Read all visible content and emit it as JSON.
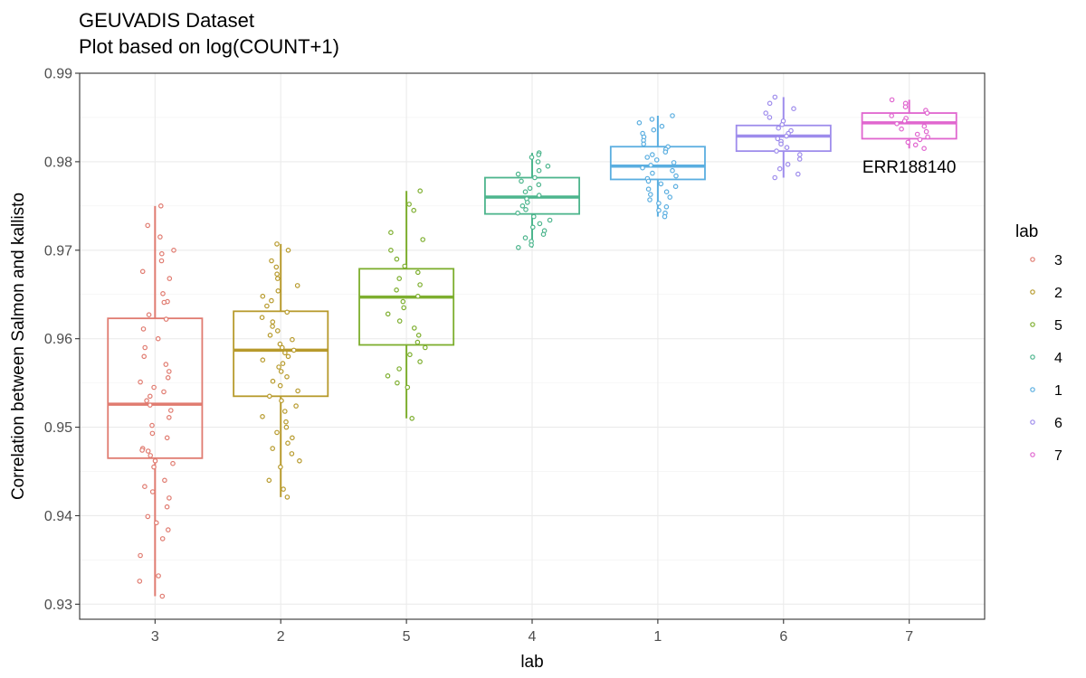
{
  "chart_data": {
    "type": "box",
    "title_lines": [
      "GEUVADIS Dataset",
      "Plot based on log(COUNT+1)"
    ],
    "xlabel": "lab",
    "ylabel": "Correlation between Salmon and kallisto",
    "categories": [
      "3",
      "2",
      "5",
      "4",
      "1",
      "6",
      "7"
    ],
    "ylim": [
      0.9283,
      0.99
    ],
    "yticks": [
      0.93,
      0.94,
      0.95,
      0.96,
      0.97,
      0.98,
      0.99
    ],
    "ytick_labels": [
      "0.93",
      "0.94",
      "0.95",
      "0.96",
      "0.97",
      "0.98",
      "0.99"
    ],
    "grid": true,
    "legend": {
      "title": "lab",
      "placement": "right",
      "entries": [
        "3",
        "2",
        "5",
        "4",
        "1",
        "6",
        "7"
      ]
    },
    "annotation": {
      "text": "ERR188140",
      "category": "7",
      "y": 0.9795
    },
    "boxes": [
      {
        "lab": "3",
        "color": "#E07B70",
        "whisker_low": 0.9309,
        "q1": 0.9465,
        "median": 0.9526,
        "q3": 0.9623,
        "whisker_high": 0.975
      },
      {
        "lab": "2",
        "color": "#B79A2C",
        "whisker_low": 0.9421,
        "q1": 0.9535,
        "median": 0.9587,
        "q3": 0.9631,
        "whisker_high": 0.9707
      },
      {
        "lab": "5",
        "color": "#7DAE2E",
        "whisker_low": 0.951,
        "q1": 0.9593,
        "median": 0.9647,
        "q3": 0.9679,
        "whisker_high": 0.9767
      },
      {
        "lab": "4",
        "color": "#4DB58D",
        "whisker_low": 0.9703,
        "q1": 0.9741,
        "median": 0.976,
        "q3": 0.9782,
        "whisker_high": 0.981
      },
      {
        "lab": "1",
        "color": "#5AAEE0",
        "whisker_low": 0.9738,
        "q1": 0.978,
        "median": 0.9795,
        "q3": 0.9817,
        "whisker_high": 0.9852
      },
      {
        "lab": "6",
        "color": "#9E8CEC",
        "whisker_low": 0.9782,
        "q1": 0.9812,
        "median": 0.9829,
        "q3": 0.9841,
        "whisker_high": 0.9873
      },
      {
        "lab": "7",
        "color": "#E066CF",
        "whisker_low": 0.9815,
        "q1": 0.9826,
        "median": 0.9844,
        "q3": 0.9855,
        "whisker_high": 0.987
      }
    ],
    "points": [
      {
        "lab": "3",
        "values": [
          0.975,
          0.9728,
          0.9715,
          0.97,
          0.9696,
          0.9688,
          0.9676,
          0.9668,
          0.9651,
          0.9642,
          0.9641,
          0.9627,
          0.9622,
          0.9611,
          0.96,
          0.959,
          0.958,
          0.9571,
          0.9563,
          0.9556,
          0.9551,
          0.9545,
          0.954,
          0.9535,
          0.953,
          0.9525,
          0.9519,
          0.9511,
          0.9502,
          0.9493,
          0.9488,
          0.9476,
          0.9474,
          0.9473,
          0.9468,
          0.9462,
          0.9459,
          0.9455,
          0.944,
          0.9433,
          0.9427,
          0.942,
          0.941,
          0.9399,
          0.9392,
          0.9384,
          0.9374,
          0.9355,
          0.9332,
          0.9326,
          0.9309
        ]
      },
      {
        "lab": "2",
        "values": [
          0.9707,
          0.97,
          0.9688,
          0.9681,
          0.9673,
          0.9668,
          0.966,
          0.9654,
          0.9648,
          0.9643,
          0.9637,
          0.963,
          0.9624,
          0.9619,
          0.9614,
          0.9609,
          0.9604,
          0.9599,
          0.9594,
          0.959,
          0.9587,
          0.9584,
          0.958,
          0.9576,
          0.9572,
          0.9568,
          0.9563,
          0.9557,
          0.9552,
          0.9547,
          0.9541,
          0.9535,
          0.953,
          0.9524,
          0.9518,
          0.9512,
          0.9506,
          0.95,
          0.9494,
          0.9488,
          0.9482,
          0.9476,
          0.947,
          0.9462,
          0.9455,
          0.944,
          0.943,
          0.9421
        ]
      },
      {
        "lab": "5",
        "values": [
          0.9767,
          0.9752,
          0.9745,
          0.972,
          0.9712,
          0.97,
          0.969,
          0.9682,
          0.9675,
          0.9668,
          0.9661,
          0.9655,
          0.9648,
          0.9642,
          0.9635,
          0.9628,
          0.962,
          0.9612,
          0.9604,
          0.9596,
          0.959,
          0.9582,
          0.9574,
          0.9566,
          0.9558,
          0.955,
          0.9545,
          0.951
        ]
      },
      {
        "lab": "4",
        "values": [
          0.981,
          0.9808,
          0.9805,
          0.98,
          0.9795,
          0.979,
          0.9786,
          0.9782,
          0.9778,
          0.9774,
          0.977,
          0.9766,
          0.9762,
          0.9758,
          0.9754,
          0.975,
          0.9746,
          0.9742,
          0.9738,
          0.9734,
          0.973,
          0.9726,
          0.9722,
          0.9718,
          0.9714,
          0.971,
          0.9706,
          0.9703
        ]
      },
      {
        "lab": "1",
        "values": [
          0.9852,
          0.9848,
          0.9844,
          0.984,
          0.9836,
          0.9832,
          0.9828,
          0.9824,
          0.982,
          0.9817,
          0.9814,
          0.9811,
          0.9808,
          0.9805,
          0.9802,
          0.9799,
          0.9796,
          0.9793,
          0.979,
          0.9787,
          0.9784,
          0.9781,
          0.9778,
          0.9775,
          0.9772,
          0.9769,
          0.9766,
          0.9763,
          0.976,
          0.9757,
          0.9753,
          0.9749,
          0.9745,
          0.9742,
          0.9738
        ]
      },
      {
        "lab": "6",
        "values": [
          0.9873,
          0.9866,
          0.986,
          0.9855,
          0.985,
          0.9846,
          0.9842,
          0.9838,
          0.9835,
          0.9832,
          0.9829,
          0.9826,
          0.9823,
          0.982,
          0.9816,
          0.9812,
          0.9808,
          0.9803,
          0.9797,
          0.9792,
          0.9786,
          0.9782
        ]
      },
      {
        "lab": "7",
        "values": [
          0.987,
          0.9866,
          0.9862,
          0.9858,
          0.9855,
          0.9852,
          0.9849,
          0.9846,
          0.9843,
          0.984,
          0.9837,
          0.9834,
          0.9831,
          0.9828,
          0.9825,
          0.9822,
          0.9819,
          0.9815
        ]
      }
    ]
  }
}
